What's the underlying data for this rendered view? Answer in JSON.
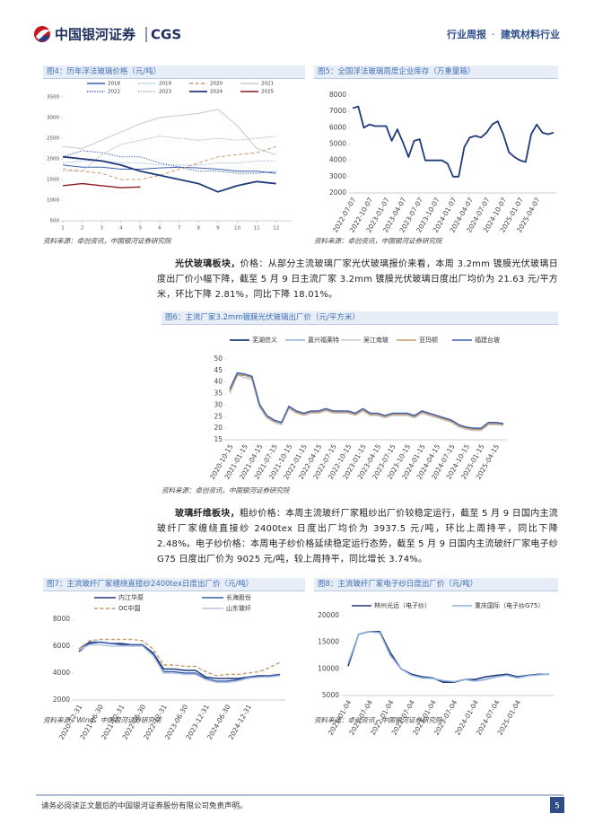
{
  "header": {
    "logo": "中国银河证券",
    "logo_en": "CGS",
    "report_type": "行业周报",
    "separator": "·",
    "industry": "建筑材料行业"
  },
  "paragraphs": [
    {
      "lead": "光伏玻璃板块，",
      "text": "价格：从部分主流玻璃厂家光伏玻璃报价来看，本周 3.2mm 镀膜光伏玻璃日度出厂价小幅下降，截至 5 月 9 日主流厂家 3.2mm 镀膜光伏玻璃日度出厂均价为 21.63 元/平方米，环比下降 2.81%，同比下降 18.01%。"
    },
    {
      "lead": "玻璃纤维板块，",
      "text": "粗纱价格：本周主流玻纤厂家粗纱出厂价较稳定运行，截至 5 月 9 日国内主流玻纤厂家缠绕直接纱 2400tex 日度出厂均价为 3937.5 元/吨，环比上周持平，同比下降 2.48%。电子纱价格：本周电子纱价格延续稳定运行态势，截至 5 月 9 日国内主流玻纤厂家电子纱 G75 日度出厂价为 9025 元/吨，较上周持平，同比增长 3.74%。"
    }
  ],
  "chart_data": [
    {
      "type": "line",
      "title": "图4：历年浮法玻璃价格（元/吨）",
      "source": "资料来源：卓创资讯，中国银河证券研究院",
      "x": [
        1,
        2,
        3,
        4,
        5,
        6,
        7,
        8,
        9,
        10,
        11,
        12
      ],
      "xlim": [
        1,
        12.8
      ],
      "xticks": [
        1,
        2,
        3,
        4,
        5,
        6,
        7,
        8,
        9,
        10,
        11,
        12
      ],
      "ylim": [
        500,
        3500
      ],
      "yticks": [
        500,
        1000,
        1500,
        2000,
        2500,
        3000,
        3500
      ],
      "grid": false,
      "series": [
        {
          "name": "2018",
          "color": "#3a5fb0",
          "dash": "solid",
          "values": [
            1850,
            1800,
            1800,
            1750,
            1750,
            1780,
            1800,
            1780,
            1750,
            1700,
            1700,
            1650
          ]
        },
        {
          "name": "2019",
          "color": "#8fb0dc",
          "dash": "dotted",
          "values": [
            1900,
            1950,
            1950,
            1900,
            1900,
            1850,
            1850,
            1850,
            1900,
            1900,
            1950,
            1950
          ]
        },
        {
          "name": "2020",
          "color": "#c59a6a",
          "dash": "dashed",
          "values": [
            1750,
            1700,
            1650,
            1500,
            1500,
            1600,
            1750,
            1900,
            2050,
            2100,
            2150,
            2300
          ]
        },
        {
          "name": "2021",
          "color": "#c8c8c8",
          "dash": "solid",
          "values": [
            2300,
            2250,
            2450,
            2650,
            2850,
            3000,
            3050,
            3100,
            3200,
            2800,
            2250,
            2100
          ]
        },
        {
          "name": "2022",
          "color": "#3a5fb0",
          "dash": "dotted",
          "values": [
            2050,
            2200,
            2150,
            2050,
            2050,
            1900,
            1800,
            1700,
            1700,
            1650,
            1650,
            1700
          ]
        },
        {
          "name": "2023",
          "color": "#a8a8a8",
          "dash": "dotted",
          "values": [
            1700,
            1700,
            2100,
            2350,
            2450,
            2550,
            2500,
            2450,
            2500,
            2450,
            2500,
            2550
          ]
        },
        {
          "name": "2024",
          "color": "#1f3a7a",
          "dash": "solid",
          "width": 1.8,
          "values": [
            2050,
            2000,
            1950,
            1850,
            1700,
            1600,
            1500,
            1400,
            1200,
            1350,
            1450,
            1400
          ]
        },
        {
          "name": "2025",
          "color": "#8b1a1a",
          "dash": "solid",
          "width": 1.4,
          "values": [
            1350,
            1400,
            1350,
            1300,
            1320,
            null,
            null,
            null,
            null,
            null,
            null,
            null
          ]
        }
      ]
    },
    {
      "type": "line",
      "title": "图5：全国浮法玻璃周度企业库存（万重量箱）",
      "source": "资料来源：卓创资讯，中国银河证券研究院",
      "categories": [
        "2022-07-07",
        null,
        null,
        "2022-10-07",
        null,
        null,
        "2023-01-07",
        null,
        null,
        "2023-04-07",
        null,
        null,
        "2023-07-07",
        null,
        null,
        "2023-10-07",
        null,
        null,
        "2024-01-07",
        null,
        null,
        "2024-04-07",
        null,
        null,
        "2024-07-07",
        null,
        null,
        "2024-10-07",
        null,
        null,
        "2025-01-07",
        null,
        null,
        "2025-04-07",
        null,
        null,
        null
      ],
      "ylim": [
        2000,
        8000
      ],
      "yticks": [
        2000,
        3000,
        4000,
        5000,
        6000,
        7000,
        8000
      ],
      "grid": false,
      "series": [
        {
          "name": null,
          "color": "#1f3a7a",
          "width": 1.8,
          "values": [
            7200,
            7300,
            6000,
            6200,
            6100,
            6100,
            6100,
            5200,
            5900,
            5100,
            4200,
            5200,
            5300,
            4000,
            4000,
            4000,
            4000,
            3800,
            3000,
            3000,
            4800,
            5400,
            5500,
            5400,
            5700,
            6200,
            6400,
            5600,
            4500,
            4200,
            4000,
            3900,
            5600,
            6200,
            5700,
            5600,
            5700
          ]
        }
      ]
    },
    {
      "type": "line",
      "title": "图6：主流厂家3.2mm镀膜光伏玻璃出厂价（元/平方米）",
      "source": "资料来源：卓创资讯，中国银河证券研究院",
      "categories": [
        "2020-10-15",
        null,
        "2021-01-15",
        null,
        "2021-04-15",
        null,
        "2021-07-15",
        null,
        "2021-10-15",
        null,
        "2022-01-15",
        null,
        "2022-04-15",
        null,
        "2022-07-15",
        null,
        "2022-10-15",
        null,
        "2023-01-15",
        null,
        "2023-04-15",
        null,
        "2023-07-15",
        null,
        "2023-10-15",
        null,
        "2024-01-15",
        null,
        "2024-04-15",
        null,
        "2024-07-15",
        null,
        "2024-10-15",
        null,
        "2025-01-15",
        null,
        "2025-04-15",
        null
      ],
      "ylim": [
        15,
        50
      ],
      "yticks": [
        15,
        20,
        25,
        30,
        35,
        40,
        45,
        50
      ],
      "grid": false,
      "series": [
        {
          "name": "芜湖信义",
          "color": "#1f3a7a",
          "width": 1.8,
          "values": [
            36,
            43,
            43,
            42,
            30,
            25,
            23,
            22,
            29,
            27,
            26,
            27,
            27,
            28,
            27,
            27,
            27,
            26,
            28,
            26,
            26,
            25,
            26,
            26,
            26,
            25,
            27,
            26,
            25,
            24,
            23,
            21,
            20,
            19.5,
            19.5,
            22,
            22,
            21.6
          ]
        },
        {
          "name": "嘉兴福莱特",
          "color": "#8fb0dc",
          "width": 1.6,
          "values": [
            36,
            43.5,
            43,
            42,
            30,
            25,
            23,
            22,
            29,
            27,
            26,
            27,
            27,
            28,
            27,
            27,
            27,
            26,
            28,
            26,
            26,
            25,
            26,
            26,
            26,
            25,
            27,
            26,
            25,
            24,
            23,
            21,
            20,
            19.5,
            19.5,
            22,
            22,
            21.6
          ]
        },
        {
          "name": "吴江南玻",
          "color": "#c8c8c8",
          "width": 1.4,
          "values": [
            35,
            43,
            42,
            41,
            29,
            24.5,
            22.5,
            21.5,
            28.5,
            26.5,
            25.5,
            26.5,
            26.5,
            27.5,
            26.5,
            26.5,
            26.5,
            25.5,
            27.5,
            25.5,
            25.5,
            24.5,
            25.5,
            25.5,
            25.5,
            24.5,
            26.5,
            25.5,
            24.5,
            23.5,
            22.5,
            20.5,
            19.5,
            19,
            19,
            21.5,
            21.5,
            21.2
          ]
        },
        {
          "name": "亚玛顿",
          "color": "#c59a6a",
          "width": 1.4,
          "values": [
            36,
            43,
            43,
            42,
            30,
            25,
            23,
            22.5,
            29,
            27,
            26,
            27,
            27,
            28,
            27,
            27,
            27,
            26,
            28,
            26,
            26,
            25,
            26,
            26,
            26,
            25,
            27,
            26,
            25,
            24,
            23,
            21,
            20,
            19.5,
            19.5,
            22,
            22,
            21.6
          ]
        },
        {
          "name": "福建台玻",
          "color": "#3a5fb0",
          "width": 1.4,
          "values": [
            37,
            44,
            43.5,
            42.5,
            30.5,
            25.5,
            23.5,
            22.5,
            29.5,
            27.5,
            26.5,
            27.5,
            27.5,
            28.5,
            27.5,
            27.5,
            27.5,
            26.5,
            28.5,
            26.5,
            26.5,
            25.5,
            26.5,
            26.5,
            26.5,
            25.5,
            27.5,
            26.5,
            25.5,
            24.5,
            23.5,
            21.5,
            20.5,
            20,
            20,
            22.5,
            22.5,
            22
          ]
        }
      ]
    },
    {
      "type": "line",
      "title": "图7：主流玻纤厂家缠绕直接纱2400tex日度出厂价（元/吨）",
      "source": "资料来源：Wind，中国银河证券研究院",
      "categories": [
        "2020-12-31",
        null,
        "2021-06-30",
        null,
        "2021-12-31",
        null,
        "2022-06-30",
        null,
        "2022-12-31",
        null,
        "2023-06-30",
        null,
        "2023-12-31",
        null,
        "2024-06-30",
        null,
        "2024-12-31",
        null,
        null,
        null
      ],
      "ylim": [
        2000,
        8000
      ],
      "yticks": [
        2000,
        4000,
        6000,
        8000
      ],
      "grid": false,
      "series": [
        {
          "name": "内江华原",
          "color": "#1f3a7a",
          "width": 1.6,
          "values": [
            5600,
            6200,
            6300,
            6200,
            6200,
            6100,
            6100,
            5500,
            4300,
            4300,
            4200,
            4200,
            3700,
            3600,
            3600,
            3600,
            3700,
            3800,
            3800,
            3900
          ]
        },
        {
          "name": "长海股份",
          "color": "#3a5fb0",
          "width": 1.4,
          "values": [
            5800,
            6300,
            6300,
            6200,
            6100,
            6100,
            6100,
            5400,
            4100,
            4100,
            4000,
            4000,
            3600,
            3400,
            3400,
            3500,
            3700,
            3700,
            3800,
            3900
          ]
        },
        {
          "name": "OC中国",
          "color": "#c59a6a",
          "width": 1.4,
          "dash": "dashed",
          "values": [
            5800,
            6400,
            6500,
            6500,
            6500,
            6500,
            6400,
            5800,
            4600,
            4600,
            4500,
            4500,
            4100,
            3800,
            3900,
            3900,
            4000,
            4100,
            4400,
            4800
          ]
        },
        {
          "name": "山东玻纤",
          "color": "#b7c6df",
          "width": 1.4,
          "values": [
            5700,
            6100,
            6100,
            6000,
            6000,
            6000,
            6000,
            5300,
            4000,
            4000,
            3900,
            3900,
            3500,
            3300,
            3300,
            3400,
            3600,
            3700,
            3700,
            3800
          ]
        }
      ]
    },
    {
      "type": "line",
      "title": "图8：主流玻纤厂家电子纱日度出厂价（元/吨）",
      "source": "资料来源：卓创资讯，中国银河证券研究院",
      "categories": [
        "2021-01-04",
        null,
        "2021-07-04",
        null,
        "2022-01-04",
        null,
        "2022-07-04",
        null,
        "2023-01-04",
        null,
        "2023-07-04",
        null,
        "2024-01-04",
        null,
        "2024-07-04",
        null,
        "2025-01-04",
        null,
        null,
        null
      ],
      "ylim": [
        5000,
        20000
      ],
      "yticks": [
        5000,
        10000,
        15000,
        20000
      ],
      "grid": false,
      "series": [
        {
          "name": "林州光远（电子纱）",
          "color": "#1f3a7a",
          "width": 1.6,
          "values": [
            10500,
            16500,
            17000,
            17000,
            13000,
            10000,
            9000,
            8500,
            8300,
            7500,
            7500,
            8000,
            8000,
            8500,
            8800,
            9000,
            8500,
            8800,
            9000,
            9000
          ]
        },
        {
          "name": "重庆国际（电子纱G75）",
          "color": "#8fb0dc",
          "width": 1.6,
          "values": [
            11000,
            16500,
            17000,
            16800,
            12500,
            10000,
            8800,
            8300,
            8200,
            7800,
            7600,
            8000,
            7700,
            8000,
            8500,
            8800,
            8300,
            8700,
            8900,
            9025
          ]
        }
      ]
    }
  ],
  "footer": {
    "disclaimer": "请务必阅读正文最后的中国银河证券股份有限公司免责声明。",
    "page": "5"
  }
}
